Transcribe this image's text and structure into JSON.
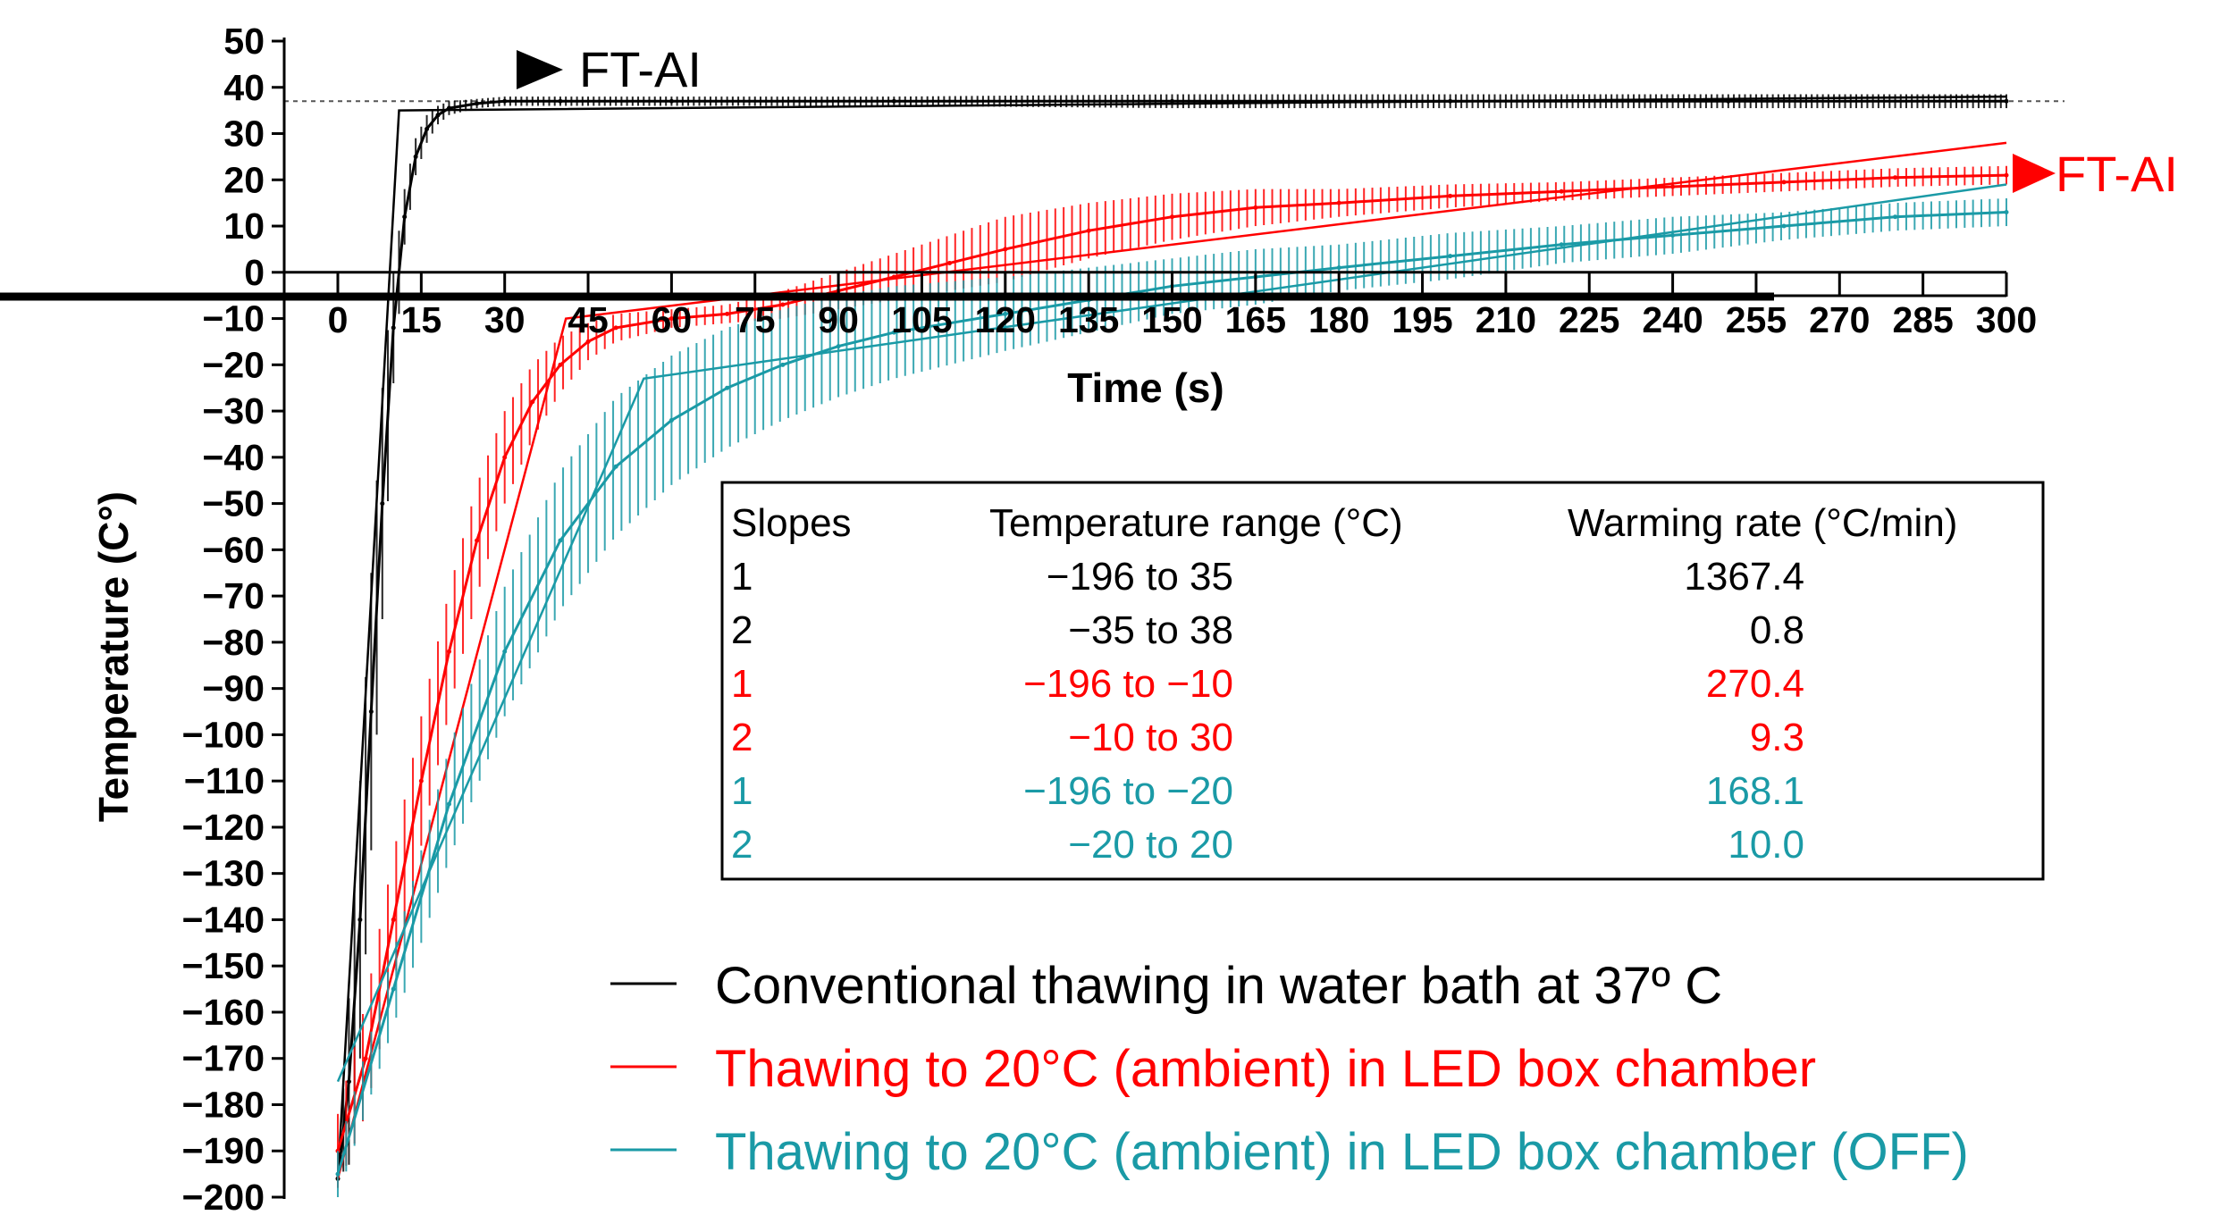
{
  "chart_data": {
    "type": "line",
    "title": "",
    "xlabel": "Time (s)",
    "ylabel": "Temperature (C°)",
    "xlim": [
      0,
      300
    ],
    "ylim": [
      -200,
      50
    ],
    "xticks": [
      "0",
      "15",
      "30",
      "45",
      "60",
      "75",
      "90",
      "105",
      "120",
      "135",
      "150",
      "165",
      "180",
      "195",
      "210",
      "225",
      "240",
      "255",
      "270",
      "285",
      "300"
    ],
    "yticks": [
      "50",
      "40",
      "30",
      "20",
      "10",
      "0",
      "−10",
      "−20",
      "−30",
      "−40",
      "−50",
      "−60",
      "−70",
      "−80",
      "−90",
      "−100",
      "−110",
      "−120",
      "−130",
      "−140",
      "−150",
      "−160",
      "−170",
      "−180",
      "−190",
      "−200"
    ],
    "reference_line": {
      "y": 37,
      "style": "dotted"
    },
    "annotations": [
      {
        "text": "FT-AI",
        "color": "#000000",
        "points_to": "black-curve-plateau"
      },
      {
        "text": "FT-AI",
        "color": "#ff0000",
        "points_to": "red-curve-end"
      }
    ],
    "series": [
      {
        "name": "Conventional thawing in water bath at 37º  C",
        "color": "#000000",
        "x": [
          0,
          2,
          4,
          6,
          8,
          10,
          12,
          14,
          16,
          18,
          20,
          25,
          30,
          40,
          60,
          100,
          150,
          200,
          250,
          300
        ],
        "y": [
          -196,
          -175,
          -140,
          -95,
          -50,
          -12,
          12,
          25,
          31,
          34,
          35.5,
          36.5,
          37,
          37,
          37,
          37,
          37,
          37,
          37,
          37
        ],
        "error": [
          0,
          18,
          30,
          30,
          25,
          12,
          6,
          4,
          3,
          2,
          1.5,
          1,
          1,
          1,
          1,
          1,
          1.5,
          1.5,
          1.5,
          1.5
        ],
        "fit": {
          "x": [
            0,
            11,
            300
          ],
          "y": [
            -196,
            35,
            38
          ]
        }
      },
      {
        "name": "Thawing to 20°C (ambient) in LED box chamber",
        "color": "#ff0000",
        "x": [
          0,
          5,
          10,
          15,
          20,
          25,
          30,
          35,
          40,
          45,
          50,
          60,
          70,
          80,
          90,
          100,
          110,
          120,
          135,
          150,
          165,
          180,
          200,
          220,
          240,
          260,
          280,
          300
        ],
        "y": [
          -190,
          -170,
          -140,
          -110,
          -82,
          -58,
          -40,
          -28,
          -20,
          -15,
          -12,
          -10,
          -9,
          -7,
          -4,
          -1,
          2,
          5,
          9,
          12,
          14,
          15,
          16.5,
          17.5,
          18.5,
          19.5,
          20.5,
          21
        ],
        "error": [
          8,
          12,
          14,
          14,
          13,
          12,
          10,
          8,
          6,
          4,
          3,
          2,
          2,
          3,
          4,
          5,
          6,
          7,
          6,
          5,
          4,
          3,
          2.5,
          2,
          2,
          2,
          2,
          2
        ],
        "fit": {
          "x": [
            0,
            41,
            300
          ],
          "y": [
            -196,
            -10,
            28
          ]
        }
      },
      {
        "name": "Thawing to 20°C (ambient) in LED box chamber (OFF)",
        "color": "#1a9aa6",
        "x": [
          0,
          10,
          20,
          30,
          40,
          50,
          60,
          70,
          80,
          90,
          100,
          110,
          120,
          135,
          150,
          165,
          180,
          200,
          220,
          240,
          260,
          280,
          300
        ],
        "y": [
          -195,
          -155,
          -115,
          -82,
          -58,
          -42,
          -32,
          -25,
          -20,
          -16,
          -13,
          -11,
          -9,
          -6,
          -3,
          -1,
          1,
          3.5,
          6,
          8,
          10,
          12,
          13
        ],
        "error": [
          5,
          8,
          12,
          14,
          15,
          15,
          14,
          13,
          12,
          11,
          10,
          9,
          8,
          7,
          6,
          6,
          5,
          5,
          4,
          4,
          3,
          3,
          3
        ],
        "fit": {
          "x": [
            0,
            55,
            300
          ],
          "y": [
            -175,
            -23,
            19
          ]
        }
      }
    ],
    "table": {
      "headers": [
        "Slopes",
        "Temperature range (°C)",
        "Warming rate (°C/min)"
      ],
      "rows": [
        {
          "slope": "1",
          "range": "−196  to  35",
          "rate": "1367.4",
          "color": "#000000"
        },
        {
          "slope": "2",
          "range": "−35  to  38",
          "rate": "0.8",
          "color": "#000000"
        },
        {
          "slope": "1",
          "range": "−196 to −10",
          "rate": "270.4",
          "color": "#ff0000"
        },
        {
          "slope": "2",
          "range": "−10  to   30",
          "rate": "9.3",
          "color": "#ff0000"
        },
        {
          "slope": "1",
          "range": "−196  to −20",
          "rate": "168.1",
          "color": "#1a9aa6"
        },
        {
          "slope": "2",
          "range": "−20  to  20",
          "rate": "10.0",
          "color": "#1a9aa6"
        }
      ]
    },
    "legend": [
      {
        "label": "Conventional thawing in water bath at 37º  C",
        "color": "#000000"
      },
      {
        "label": "Thawing to 20°C (ambient) in LED box chamber",
        "color": "#ff0000"
      },
      {
        "label": "Thawing to 20°C (ambient) in LED box chamber (OFF)",
        "color": "#1a9aa6"
      }
    ]
  }
}
